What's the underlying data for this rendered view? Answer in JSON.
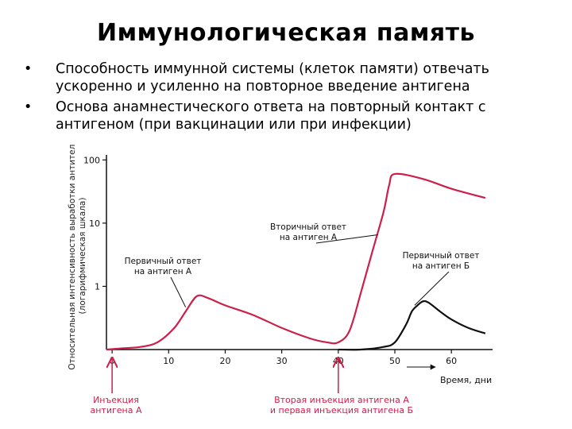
{
  "slide": {
    "title": "Иммунологическая память",
    "bullets": [
      "Способность иммунной системы (клеток памяти) отвечать ускоренно и усиленно на повторное введение антигена",
      "Основа анамнестического ответа на повторный контакт с антигеном (при вакцинации или при инфекции)"
    ]
  },
  "chart_data": {
    "type": "line",
    "ylabel_lines": [
      "Относительная интенсивность выработки антител",
      "(логарифмическая шкала)"
    ],
    "xlabel": "Время, дни",
    "x_ticks": [
      0,
      10,
      20,
      30,
      40,
      50,
      60
    ],
    "y_ticks": [
      1,
      10,
      100
    ],
    "y_scale": "log",
    "xlim": [
      -1,
      67
    ],
    "ylim": [
      0.1,
      120
    ],
    "colors": {
      "antigen_a": "#cc1f4a",
      "antigen_b": "#111111",
      "arrows": "#cc1f4a"
    },
    "series": [
      {
        "key": "antigen_a",
        "x": [
          -1,
          2,
          5,
          8,
          11,
          13,
          15,
          17,
          20,
          25,
          30,
          35,
          38,
          40,
          42,
          44,
          46,
          48,
          49,
          50,
          55,
          60,
          66
        ],
        "y": [
          0.1,
          0.105,
          0.11,
          0.13,
          0.22,
          0.4,
          0.7,
          0.65,
          0.5,
          0.35,
          0.22,
          0.15,
          0.13,
          0.13,
          0.2,
          0.8,
          3.5,
          15,
          40,
          60,
          50,
          35,
          25
        ]
      },
      {
        "key": "antigen_b",
        "x": [
          40,
          44,
          48,
          50,
          52,
          53,
          54,
          55,
          56,
          58,
          60,
          63,
          66
        ],
        "y": [
          0.1,
          0.1,
          0.11,
          0.13,
          0.25,
          0.4,
          0.5,
          0.58,
          0.55,
          0.4,
          0.3,
          0.22,
          0.18
        ]
      }
    ],
    "annotations": [
      {
        "lines": [
          "Первичный ответ",
          "на антиген А"
        ],
        "point": [
          13,
          0.43
        ]
      },
      {
        "lines": [
          "Вторичный ответ",
          "на антиген А"
        ],
        "point": [
          47,
          6
        ]
      },
      {
        "lines": [
          "Первичный ответ",
          "на антиген Б"
        ],
        "point": [
          53.5,
          0.46
        ]
      }
    ],
    "injections": [
      {
        "lines": [
          "Инъекция",
          "антигена А"
        ],
        "x": 0
      },
      {
        "lines": [
          "Вторая инъекция антигена А",
          "и первая инъекция антигена Б"
        ],
        "x": 40
      }
    ]
  }
}
